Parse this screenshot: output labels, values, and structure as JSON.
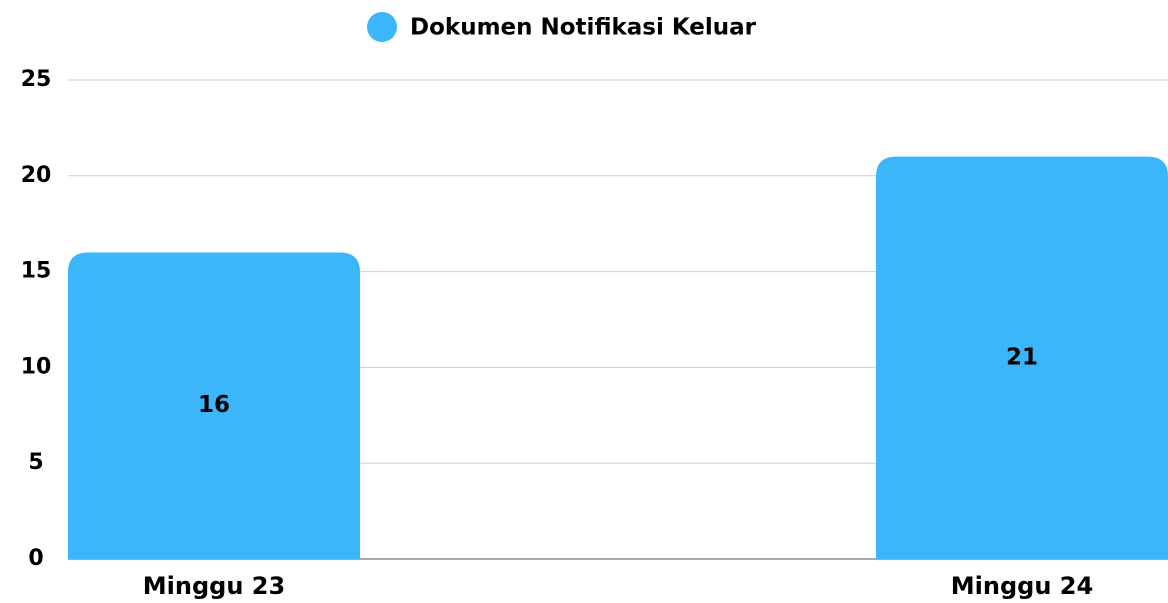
{
  "chart_data": {
    "type": "bar",
    "categories": [
      "Minggu 23",
      "Minggu 24"
    ],
    "series": [
      {
        "name": "Dokumen Notifikasi Keluar",
        "color": "#3bb6fb",
        "values": [
          16,
          21
        ]
      }
    ],
    "ylim": [
      0,
      25
    ],
    "yticks": [
      0,
      5,
      10,
      15,
      20,
      25
    ],
    "grid": true,
    "legend": "top"
  }
}
